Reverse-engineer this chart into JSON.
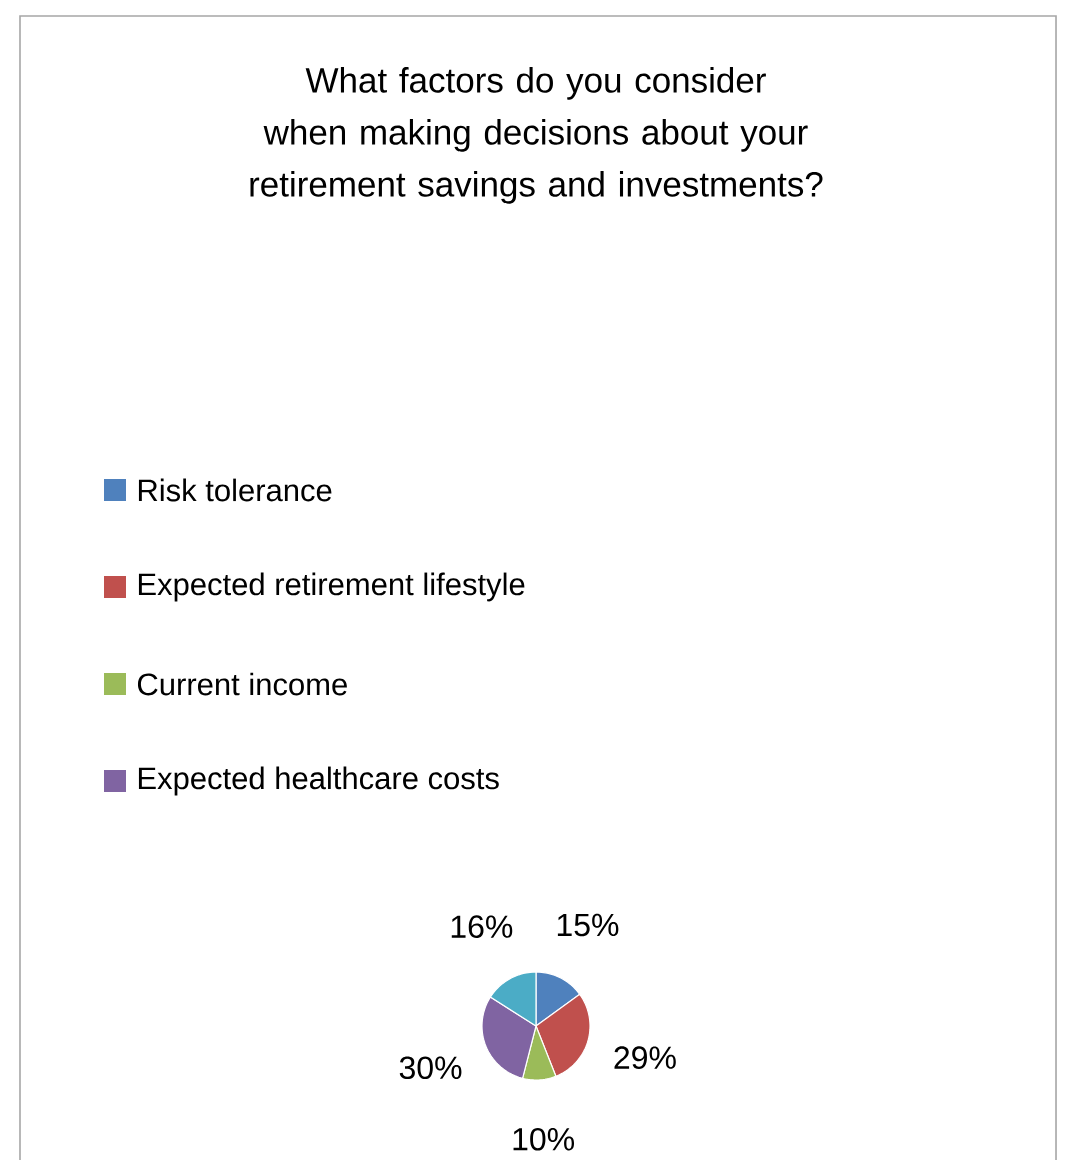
{
  "chart_data": {
    "type": "pie",
    "title": "What factors do you consider when making decisions about your retirement savings and investments?",
    "categories": [
      "Risk tolerance",
      "Expected retirement lifestyle",
      "Current income",
      "Expected healthcare costs",
      null
    ],
    "values": [
      15,
      29,
      10,
      30,
      16
    ],
    "colors": [
      "#4f81bd",
      "#c0504d",
      "#9bbb59",
      "#8064a2",
      "#4bacc6"
    ],
    "value_labels": [
      "15%",
      "29%",
      "10%",
      "30%",
      "16%"
    ],
    "legend": "top"
  }
}
